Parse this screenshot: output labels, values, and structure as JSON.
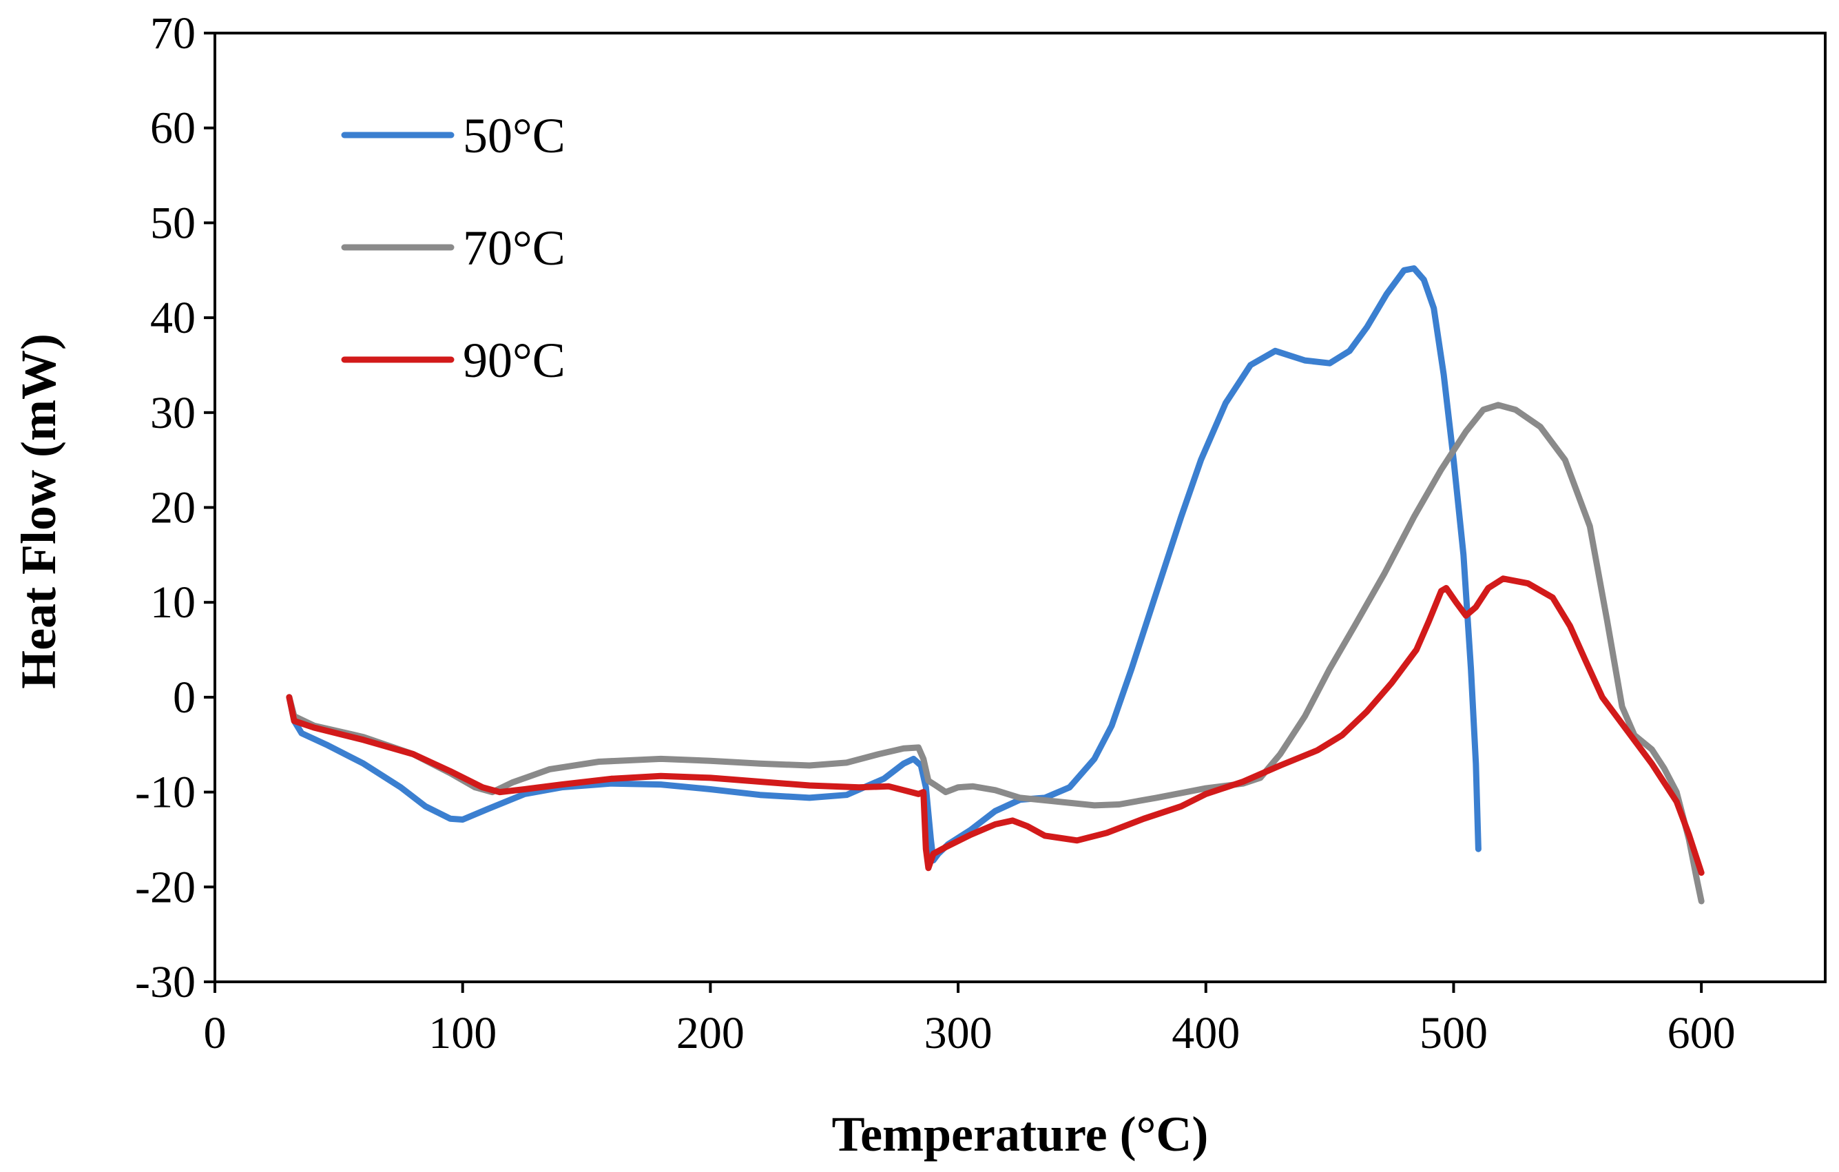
{
  "chart_data": {
    "type": "line",
    "title": "",
    "xlabel": "Temperature (°C)",
    "ylabel": "Heat Flow (mW)",
    "xlim": [
      0,
      650
    ],
    "ylim": [
      -30,
      70
    ],
    "xticks": [
      0,
      100,
      200,
      300,
      400,
      500,
      600
    ],
    "yticks": [
      -30,
      -20,
      -10,
      0,
      10,
      20,
      30,
      40,
      50,
      60,
      70
    ],
    "grid": false,
    "legend_position": "top-left",
    "series": [
      {
        "name": "50°C",
        "color": "#3b7fd0",
        "points": [
          [
            30,
            0
          ],
          [
            32,
            -2.5
          ],
          [
            35,
            -3.8
          ],
          [
            45,
            -5
          ],
          [
            60,
            -7
          ],
          [
            75,
            -9.5
          ],
          [
            85,
            -11.5
          ],
          [
            95,
            -12.8
          ],
          [
            100,
            -12.9
          ],
          [
            110,
            -11.8
          ],
          [
            125,
            -10.2
          ],
          [
            140,
            -9.5
          ],
          [
            160,
            -9.1
          ],
          [
            180,
            -9.2
          ],
          [
            200,
            -9.7
          ],
          [
            220,
            -10.3
          ],
          [
            240,
            -10.6
          ],
          [
            255,
            -10.3
          ],
          [
            270,
            -8.6
          ],
          [
            278,
            -7
          ],
          [
            282,
            -6.5
          ],
          [
            285,
            -7.2
          ],
          [
            287,
            -9.5
          ],
          [
            289,
            -15
          ],
          [
            290,
            -17.2
          ],
          [
            292,
            -16.5
          ],
          [
            296,
            -15.5
          ],
          [
            305,
            -14
          ],
          [
            315,
            -12
          ],
          [
            325,
            -10.8
          ],
          [
            335,
            -10.6
          ],
          [
            345,
            -9.5
          ],
          [
            355,
            -6.5
          ],
          [
            362,
            -3
          ],
          [
            370,
            3
          ],
          [
            380,
            11
          ],
          [
            390,
            19
          ],
          [
            398,
            25
          ],
          [
            408,
            31
          ],
          [
            418,
            35
          ],
          [
            428,
            36.5
          ],
          [
            440,
            35.5
          ],
          [
            450,
            35.2
          ],
          [
            458,
            36.5
          ],
          [
            465,
            39
          ],
          [
            473,
            42.5
          ],
          [
            480,
            45
          ],
          [
            484,
            45.2
          ],
          [
            488,
            44
          ],
          [
            492,
            41
          ],
          [
            496,
            34
          ],
          [
            500,
            25
          ],
          [
            504,
            15
          ],
          [
            507,
            3
          ],
          [
            509,
            -7
          ],
          [
            510,
            -16
          ]
        ]
      },
      {
        "name": "70°C",
        "color": "#8a8a8a",
        "points": [
          [
            30,
            0
          ],
          [
            32,
            -2
          ],
          [
            40,
            -3
          ],
          [
            60,
            -4.2
          ],
          [
            80,
            -6
          ],
          [
            95,
            -8
          ],
          [
            105,
            -9.5
          ],
          [
            112,
            -10
          ],
          [
            120,
            -9
          ],
          [
            135,
            -7.6
          ],
          [
            155,
            -6.8
          ],
          [
            180,
            -6.5
          ],
          [
            200,
            -6.7
          ],
          [
            220,
            -7
          ],
          [
            240,
            -7.2
          ],
          [
            255,
            -6.9
          ],
          [
            268,
            -6
          ],
          [
            278,
            -5.4
          ],
          [
            284,
            -5.3
          ],
          [
            286,
            -6.5
          ],
          [
            288,
            -8.8
          ],
          [
            291,
            -9.3
          ],
          [
            295,
            -10
          ],
          [
            300,
            -9.5
          ],
          [
            306,
            -9.4
          ],
          [
            315,
            -9.8
          ],
          [
            325,
            -10.6
          ],
          [
            340,
            -11
          ],
          [
            355,
            -11.4
          ],
          [
            365,
            -11.3
          ],
          [
            380,
            -10.6
          ],
          [
            400,
            -9.6
          ],
          [
            415,
            -9.1
          ],
          [
            422,
            -8.5
          ],
          [
            430,
            -6
          ],
          [
            440,
            -2
          ],
          [
            450,
            3
          ],
          [
            460,
            7.5
          ],
          [
            472,
            13
          ],
          [
            484,
            19
          ],
          [
            495,
            24
          ],
          [
            505,
            28
          ],
          [
            512,
            30.3
          ],
          [
            518,
            30.8
          ],
          [
            525,
            30.3
          ],
          [
            535,
            28.5
          ],
          [
            545,
            25
          ],
          [
            555,
            18
          ],
          [
            562,
            8
          ],
          [
            568,
            -1
          ],
          [
            573,
            -4
          ],
          [
            580,
            -5.5
          ],
          [
            585,
            -7.5
          ],
          [
            590,
            -10
          ],
          [
            595,
            -15
          ],
          [
            598,
            -19
          ],
          [
            600,
            -21.5
          ]
        ]
      },
      {
        "name": "90°C",
        "color": "#d21a1a",
        "points": [
          [
            30,
            0
          ],
          [
            32,
            -2.5
          ],
          [
            40,
            -3.2
          ],
          [
            60,
            -4.5
          ],
          [
            80,
            -6
          ],
          [
            95,
            -7.8
          ],
          [
            108,
            -9.5
          ],
          [
            115,
            -10
          ],
          [
            125,
            -9.7
          ],
          [
            140,
            -9.2
          ],
          [
            160,
            -8.6
          ],
          [
            180,
            -8.3
          ],
          [
            200,
            -8.5
          ],
          [
            220,
            -8.9
          ],
          [
            240,
            -9.3
          ],
          [
            260,
            -9.5
          ],
          [
            272,
            -9.4
          ],
          [
            278,
            -9.8
          ],
          [
            284,
            -10.2
          ],
          [
            286,
            -10
          ],
          [
            287,
            -16
          ],
          [
            288,
            -18
          ],
          [
            290,
            -16.5
          ],
          [
            295,
            -15.8
          ],
          [
            305,
            -14.5
          ],
          [
            315,
            -13.4
          ],
          [
            322,
            -13
          ],
          [
            328,
            -13.6
          ],
          [
            335,
            -14.6
          ],
          [
            348,
            -15.1
          ],
          [
            360,
            -14.3
          ],
          [
            375,
            -12.8
          ],
          [
            390,
            -11.5
          ],
          [
            400,
            -10.2
          ],
          [
            415,
            -8.9
          ],
          [
            430,
            -7.2
          ],
          [
            445,
            -5.6
          ],
          [
            455,
            -4
          ],
          [
            465,
            -1.5
          ],
          [
            475,
            1.5
          ],
          [
            485,
            5
          ],
          [
            490,
            8
          ],
          [
            495,
            11.2
          ],
          [
            497,
            11.5
          ],
          [
            501,
            10
          ],
          [
            505,
            8.6
          ],
          [
            509,
            9.5
          ],
          [
            514,
            11.5
          ],
          [
            520,
            12.5
          ],
          [
            530,
            12
          ],
          [
            540,
            10.5
          ],
          [
            547,
            7.5
          ],
          [
            553,
            4
          ],
          [
            560,
            0
          ],
          [
            570,
            -3.5
          ],
          [
            580,
            -7
          ],
          [
            590,
            -11
          ],
          [
            595,
            -14.5
          ],
          [
            600,
            -18.5
          ]
        ]
      }
    ]
  }
}
